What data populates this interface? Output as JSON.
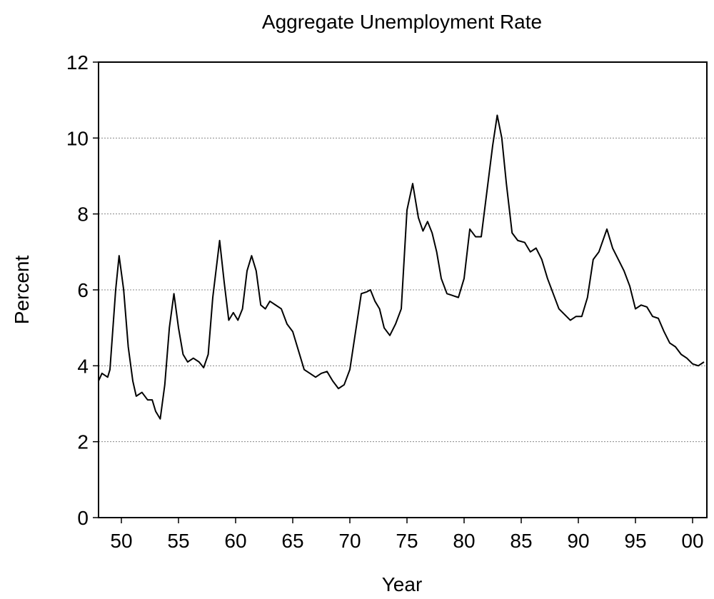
{
  "chart_data": {
    "type": "line",
    "title": "Aggregate Unemployment Rate",
    "x_label": "Year",
    "y_label": "Percent",
    "x": [
      1948.0,
      1948.3,
      1948.8,
      1949.0,
      1949.5,
      1949.8,
      1950.2,
      1950.6,
      1951.0,
      1951.3,
      1951.8,
      1952.3,
      1952.7,
      1953.0,
      1953.4,
      1953.8,
      1954.2,
      1954.6,
      1955.0,
      1955.4,
      1955.8,
      1956.3,
      1956.8,
      1957.2,
      1957.6,
      1958.0,
      1958.6,
      1959.0,
      1959.4,
      1959.8,
      1960.2,
      1960.6,
      1961.0,
      1961.4,
      1961.8,
      1962.2,
      1962.6,
      1963.0,
      1963.5,
      1964.0,
      1964.5,
      1965.0,
      1965.5,
      1966.0,
      1966.5,
      1967.0,
      1967.5,
      1968.0,
      1968.5,
      1969.0,
      1969.5,
      1970.0,
      1970.5,
      1971.0,
      1971.5,
      1971.8,
      1972.2,
      1972.6,
      1973.0,
      1973.5,
      1974.0,
      1974.5,
      1975.0,
      1975.5,
      1976.0,
      1976.4,
      1976.8,
      1977.2,
      1977.6,
      1978.0,
      1978.5,
      1979.0,
      1979.5,
      1980.0,
      1980.5,
      1981.0,
      1981.5,
      1982.0,
      1982.5,
      1982.9,
      1983.3,
      1983.7,
      1984.2,
      1984.7,
      1985.3,
      1985.8,
      1986.3,
      1986.8,
      1987.3,
      1987.8,
      1988.3,
      1988.8,
      1989.3,
      1989.8,
      1990.3,
      1990.8,
      1991.3,
      1991.8,
      1992.5,
      1993.0,
      1993.5,
      1994.0,
      1994.5,
      1995.0,
      1995.5,
      1996.0,
      1996.5,
      1997.0,
      1997.5,
      1998.0,
      1998.5,
      1999.0,
      1999.5,
      2000.0,
      2000.5,
      2001.0
    ],
    "values": [
      3.6,
      3.8,
      3.7,
      3.9,
      6.0,
      6.9,
      6.0,
      4.5,
      3.6,
      3.2,
      3.3,
      3.1,
      3.1,
      2.8,
      2.6,
      3.5,
      5.0,
      5.9,
      5.0,
      4.3,
      4.1,
      4.2,
      4.1,
      3.95,
      4.3,
      5.8,
      7.3,
      6.2,
      5.2,
      5.4,
      5.2,
      5.5,
      6.5,
      6.9,
      6.5,
      5.6,
      5.5,
      5.7,
      5.6,
      5.5,
      5.1,
      4.9,
      4.4,
      3.9,
      3.8,
      3.7,
      3.8,
      3.85,
      3.6,
      3.4,
      3.5,
      3.9,
      4.9,
      5.9,
      5.95,
      6.0,
      5.7,
      5.5,
      5.0,
      4.8,
      5.1,
      5.5,
      8.1,
      8.8,
      7.9,
      7.55,
      7.8,
      7.5,
      7.0,
      6.3,
      5.9,
      5.85,
      5.8,
      6.3,
      7.6,
      7.4,
      7.4,
      8.6,
      9.8,
      10.6,
      10.0,
      8.8,
      7.5,
      7.3,
      7.25,
      7.0,
      7.1,
      6.8,
      6.3,
      5.9,
      5.5,
      5.35,
      5.2,
      5.3,
      5.3,
      5.8,
      6.8,
      7.0,
      7.6,
      7.1,
      6.8,
      6.5,
      6.1,
      5.5,
      5.6,
      5.55,
      5.3,
      5.25,
      4.9,
      4.6,
      4.5,
      4.3,
      4.2,
      4.05,
      4.0,
      4.1
    ],
    "color": "#000000",
    "xlim": [
      1948.0,
      2001.25
    ],
    "ylim": [
      0,
      12
    ],
    "xticks": [
      {
        "value": 1950,
        "label": "50"
      },
      {
        "value": 1955,
        "label": "55"
      },
      {
        "value": 1960,
        "label": "60"
      },
      {
        "value": 1965,
        "label": "65"
      },
      {
        "value": 1970,
        "label": "70"
      },
      {
        "value": 1975,
        "label": "75"
      },
      {
        "value": 1980,
        "label": "80"
      },
      {
        "value": 1985,
        "label": "85"
      },
      {
        "value": 1990,
        "label": "90"
      },
      {
        "value": 1995,
        "label": "95"
      },
      {
        "value": 2000,
        "label": "00"
      }
    ],
    "yticks": [
      0,
      2,
      4,
      6,
      8,
      10,
      12
    ],
    "grid": true
  }
}
